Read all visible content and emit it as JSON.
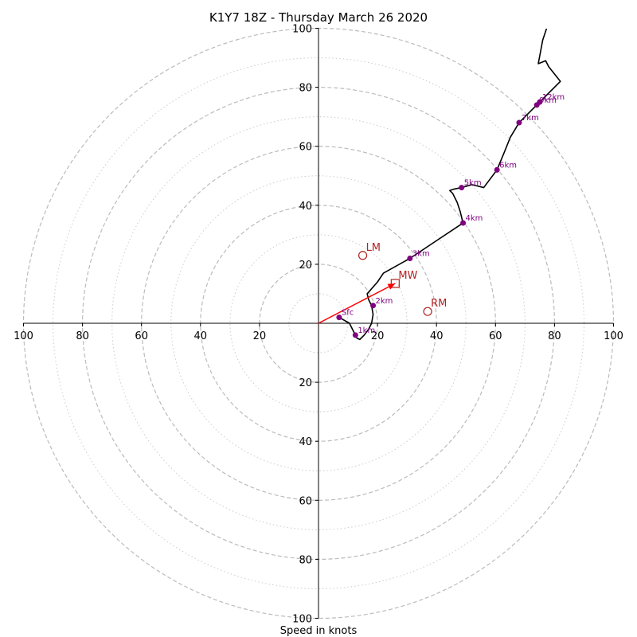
{
  "chart_data": {
    "type": "line",
    "title": "K1Y7 18Z - Thursday March 26 2020",
    "xlabel": "Speed in knots",
    "ylabel": "",
    "xlim": [
      -100,
      100
    ],
    "ylim": [
      -100,
      100
    ],
    "rings": {
      "major": [
        20,
        40,
        60,
        80,
        100
      ],
      "minor": [
        10,
        30,
        50,
        70,
        90
      ]
    },
    "x_ticks": [
      "100",
      "80",
      "60",
      "40",
      "20",
      "20",
      "40",
      "60",
      "80",
      "100"
    ],
    "x_tick_values": [
      -100,
      -80,
      -60,
      -40,
      -20,
      20,
      40,
      60,
      80,
      100
    ],
    "y_ticks": [
      "100",
      "80",
      "60",
      "40",
      "20",
      "20",
      "40",
      "60",
      "80",
      "100"
    ],
    "y_tick_values": [
      100,
      80,
      60,
      40,
      20,
      -20,
      -40,
      -60,
      -80,
      -100
    ],
    "colors": {
      "hodograph": "#000000",
      "height_markers": "#800080",
      "motion": "#b22222",
      "mean_wind_vector": "#ff0000",
      "rings": "#bbbbbb"
    },
    "hodograph": {
      "x": [
        7,
        10.5,
        11,
        12,
        13,
        14,
        15.5,
        17,
        18,
        18.5,
        18,
        17,
        16.5,
        20,
        22,
        31,
        40,
        49,
        48,
        47,
        45.5,
        44.5,
        46,
        48.5,
        52,
        56,
        60.5,
        63,
        65,
        68,
        72,
        74,
        75,
        82,
        78,
        77,
        74.5,
        76,
        78,
        80,
        81
      ],
      "y": [
        2,
        0,
        -1,
        -3,
        -5,
        -5.5,
        -4,
        -2,
        0,
        3,
        6,
        8,
        10,
        14,
        17,
        22,
        28,
        34,
        38,
        41,
        44,
        45,
        45.5,
        46,
        47,
        46,
        52,
        58,
        63,
        68,
        72,
        74,
        75,
        82,
        87,
        89,
        88,
        96,
        102,
        108,
        112
      ]
    },
    "height_markers": [
      {
        "label": "Sfc",
        "x": 7,
        "y": 2
      },
      {
        "label": "1km",
        "x": 12.5,
        "y": -4
      },
      {
        "label": "2km",
        "x": 18.5,
        "y": 6
      },
      {
        "label": "3km",
        "x": 31,
        "y": 22
      },
      {
        "label": "4km",
        "x": 49,
        "y": 34
      },
      {
        "label": "5km",
        "x": 48.5,
        "y": 46
      },
      {
        "label": "6km",
        "x": 60.5,
        "y": 52
      },
      {
        "label": "7km",
        "x": 68,
        "y": 68
      },
      {
        "label": "9km",
        "x": 74,
        "y": 74
      },
      {
        "label": "12km",
        "x": 75,
        "y": 75
      }
    ],
    "storm_motions": [
      {
        "label": "LM",
        "x": 15,
        "y": 23,
        "marker": "circle"
      },
      {
        "label": "MW",
        "x": 26,
        "y": 13.5,
        "marker": "square"
      },
      {
        "label": "RM",
        "x": 37,
        "y": 4,
        "marker": "circle"
      }
    ],
    "mean_wind_vector": {
      "x0": 0,
      "y0": 0,
      "x1": 26,
      "y1": 13.5
    }
  }
}
